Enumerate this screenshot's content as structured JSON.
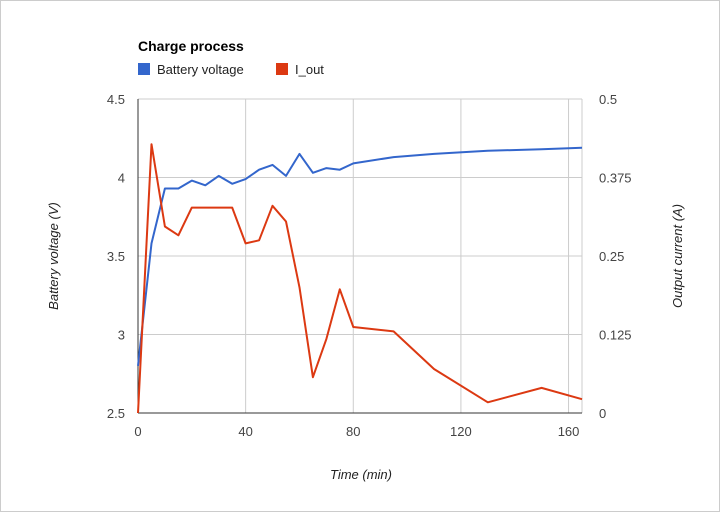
{
  "chart_data": {
    "type": "line",
    "title": "Charge process",
    "xlabel": "Time (min)",
    "ylabel": "Battery voltage (V)",
    "y2label": "Output current (A)",
    "xlim": [
      0,
      165
    ],
    "ylim": [
      2.5,
      4.5
    ],
    "y2lim": [
      0,
      0.5
    ],
    "x_ticks": [
      "0",
      "40",
      "80",
      "120",
      "160"
    ],
    "x_tick_values": [
      0,
      40,
      80,
      120,
      160
    ],
    "y_ticks": [
      "2.5",
      "3",
      "3.5",
      "4",
      "4.5"
    ],
    "y_tick_values": [
      2.5,
      3,
      3.5,
      4,
      4.5
    ],
    "y2_ticks": [
      "0",
      "0.125",
      "0.25",
      "0.375",
      "0.5"
    ],
    "grid": true,
    "legend_position": "top-left",
    "series": [
      {
        "name": "Battery voltage",
        "axis": "left",
        "color": "#3366cc",
        "x": [
          0,
          5,
          10,
          15,
          20,
          25,
          30,
          35,
          40,
          45,
          50,
          55,
          60,
          65,
          70,
          75,
          80,
          95,
          110,
          130,
          150,
          165
        ],
        "values": [
          2.8,
          3.58,
          3.93,
          3.93,
          3.98,
          3.95,
          4.01,
          3.96,
          3.99,
          4.05,
          4.08,
          4.01,
          4.15,
          4.03,
          4.06,
          4.05,
          4.09,
          4.13,
          4.15,
          4.17,
          4.18,
          4.19
        ]
      },
      {
        "name": "I_out",
        "axis": "right",
        "color": "#dc3912",
        "x": [
          0,
          5,
          10,
          15,
          20,
          25,
          30,
          35,
          40,
          45,
          50,
          55,
          60,
          65,
          70,
          75,
          80,
          95,
          110,
          130,
          150,
          165
        ],
        "values": [
          0.0,
          0.428,
          0.297,
          0.283,
          0.327,
          0.327,
          0.327,
          0.327,
          0.27,
          0.275,
          0.33,
          0.305,
          0.2,
          0.057,
          0.118,
          0.197,
          0.137,
          0.13,
          0.07,
          0.017,
          0.04,
          0.022
        ]
      }
    ]
  }
}
